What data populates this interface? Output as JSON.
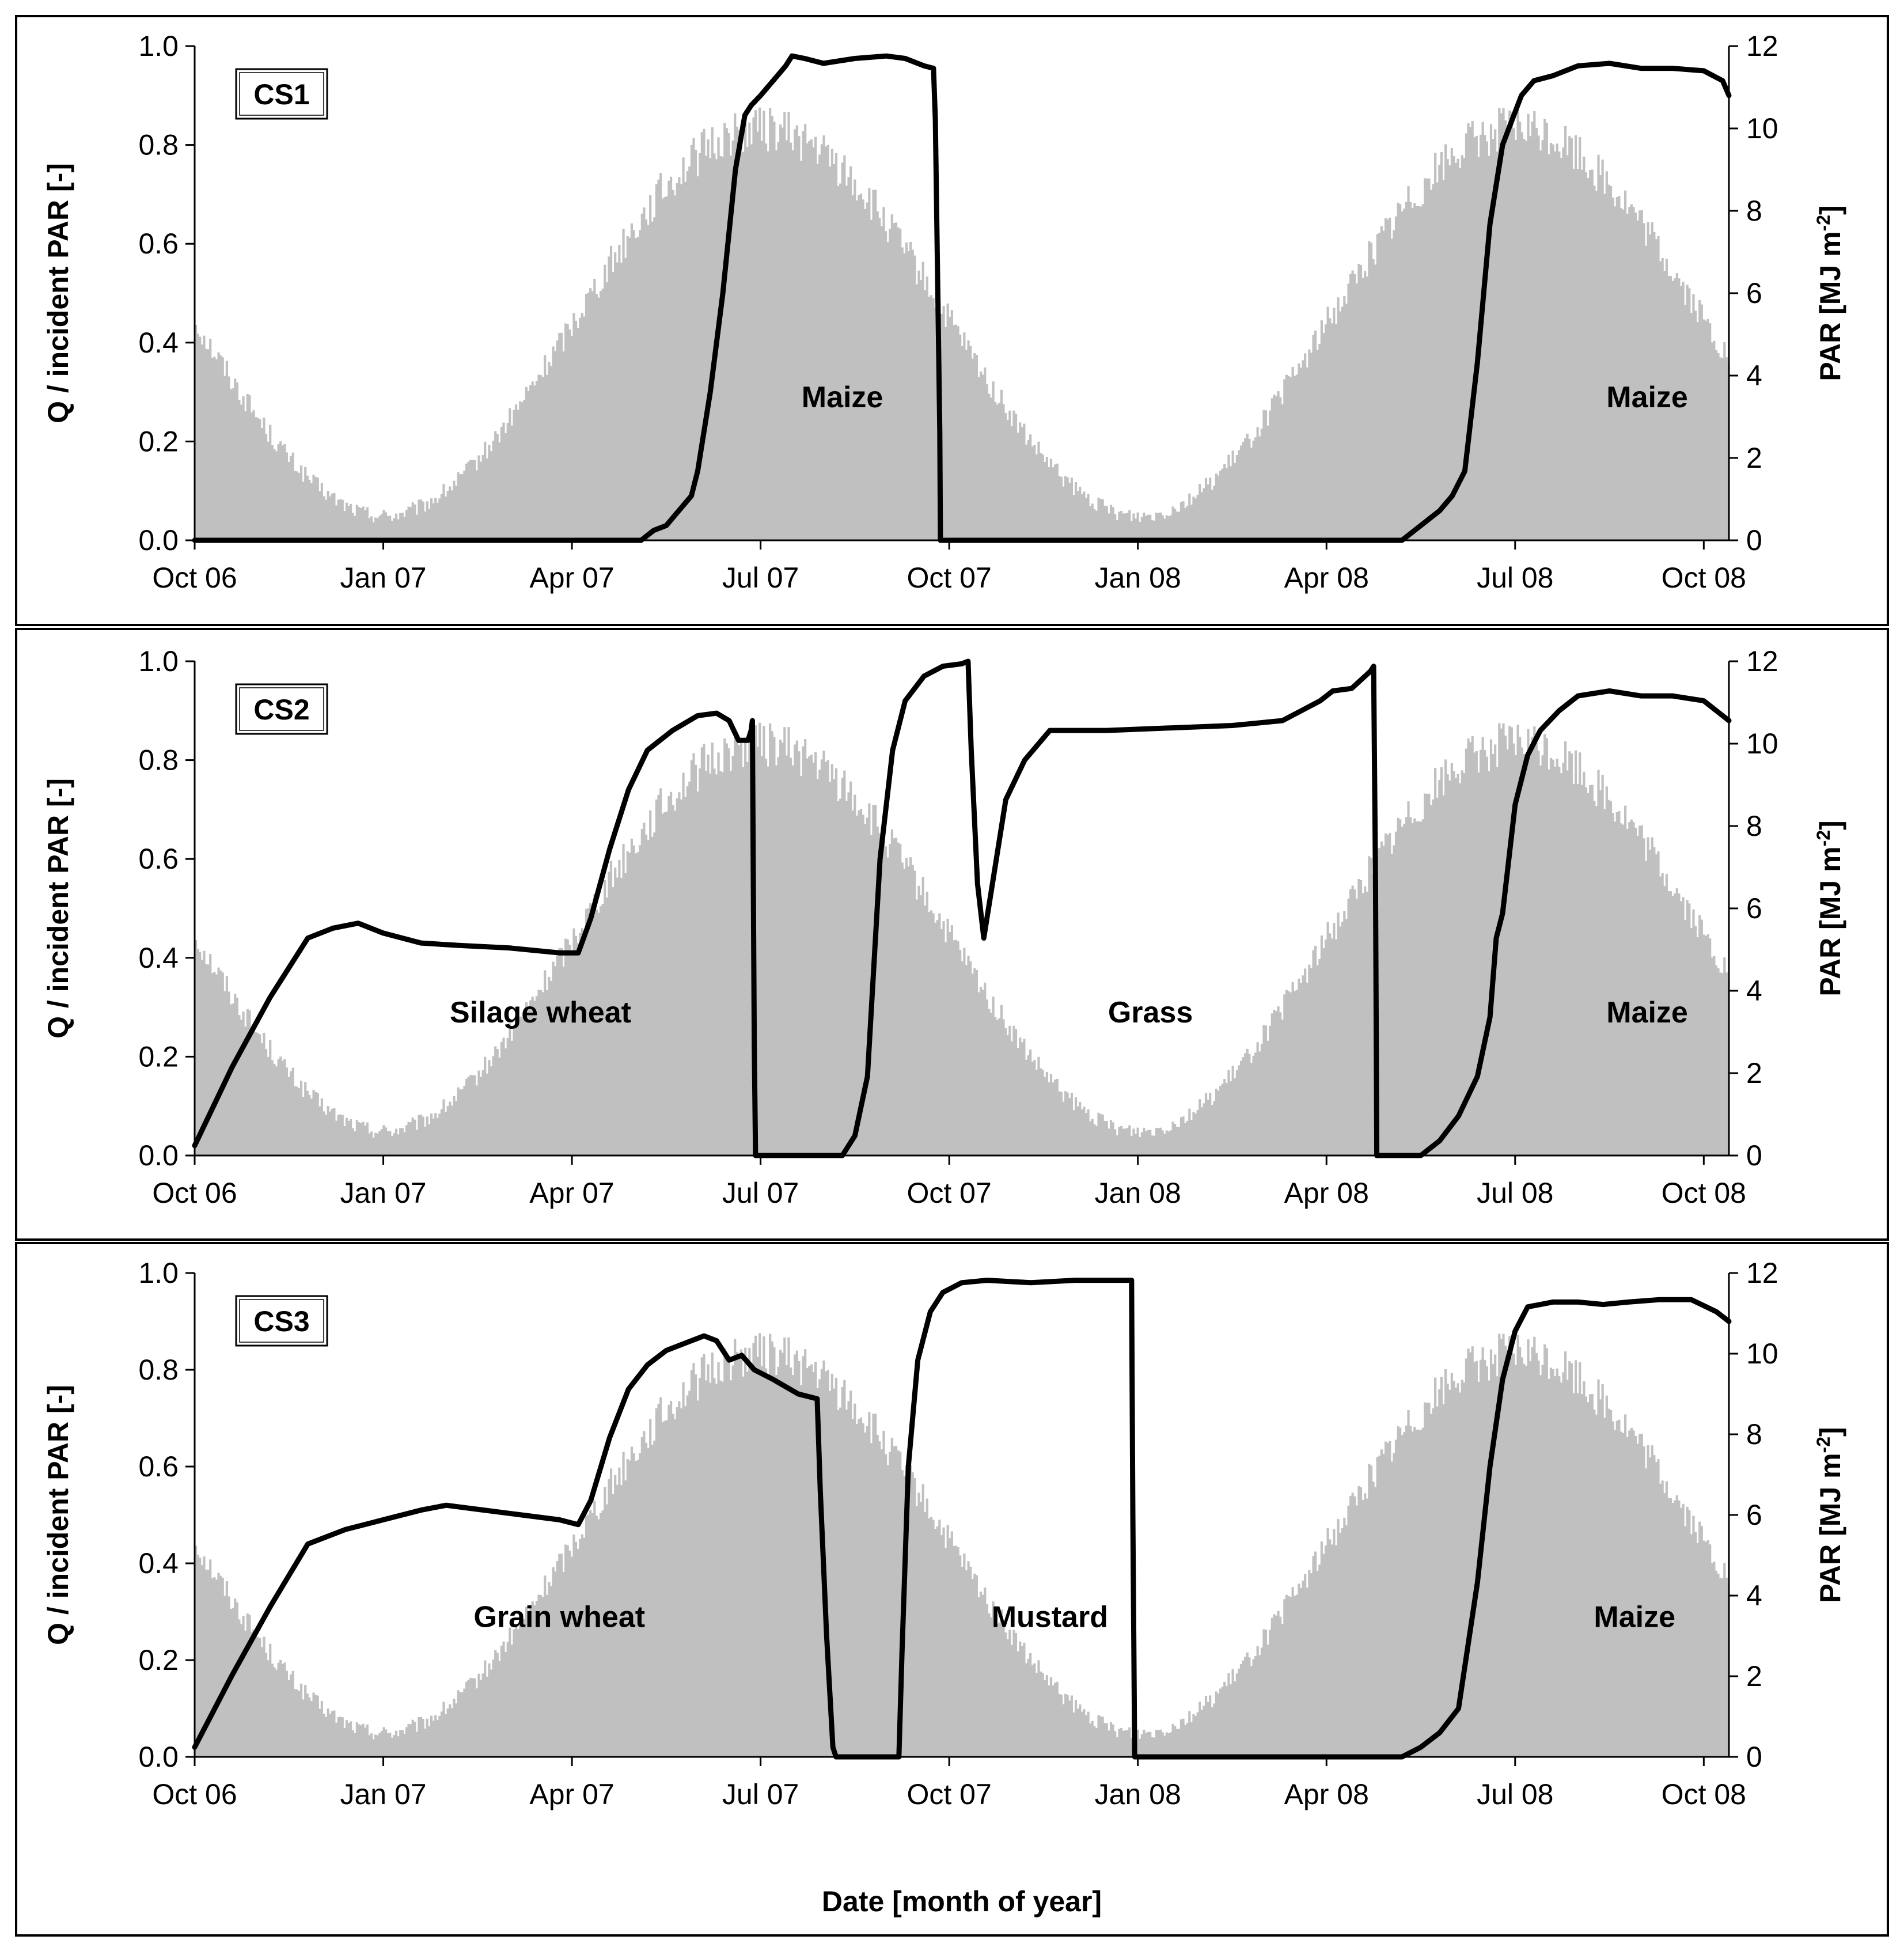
{
  "figure": {
    "xlabel": "Date [month of year]",
    "y_left_label": "Q / incident PAR [-]",
    "y_right_label": "PAR [MJ m-2]",
    "y_right_label_base": "PAR [MJ m",
    "y_right_label_sup": "-2",
    "y_right_label_end": "]",
    "bar_color": "#c0c0c0",
    "line_color": "#000000"
  },
  "chart_data": [
    {
      "type": "line",
      "panel_label": "CS1",
      "title": "CS1",
      "xlabel": "Date [month of year]",
      "ylabel": "Q / incident PAR [-]",
      "ylabel_right": "PAR [MJ m-2]",
      "x_start": "Oct 06",
      "xlim_months": [
        0,
        24.4
      ],
      "ylim": [
        0,
        1.0
      ],
      "ylim_right": [
        0,
        12
      ],
      "x_tick_labels": [
        "Oct 06",
        "Jan 07",
        "Apr 07",
        "Jul 07",
        "Oct 07",
        "Jan 08",
        "Apr 08",
        "Jul 08",
        "Oct 08"
      ],
      "x_tick_months": [
        0,
        3,
        6,
        9,
        12,
        15,
        18,
        21,
        24
      ],
      "y_ticks": [
        "0.0",
        "0.2",
        "0.4",
        "0.6",
        "0.8",
        "1.0"
      ],
      "y_ticks_right": [
        "0",
        "2",
        "4",
        "6",
        "8",
        "10",
        "12"
      ],
      "crop_labels": [
        {
          "text": "Maize",
          "month": 10.3,
          "y": 0.29
        },
        {
          "text": "Maize",
          "month": 23.1,
          "y": 0.29
        }
      ],
      "series": [
        {
          "name": "Q / incident PAR",
          "axis": "left",
          "x_months": [
            0,
            7.1,
            7.3,
            7.5,
            7.7,
            7.9,
            8.0,
            8.2,
            8.4,
            8.6,
            8.75,
            8.85,
            9.0,
            9.2,
            9.4,
            9.5,
            9.7,
            10.0,
            10.5,
            11.0,
            11.3,
            11.6,
            11.75,
            11.78,
            11.85,
            11.86,
            19.2,
            19.5,
            19.8,
            20.0,
            20.2,
            20.4,
            20.6,
            20.8,
            20.95,
            21.1,
            21.3,
            21.6,
            22.0,
            22.5,
            23.0,
            23.5,
            24.0,
            24.3,
            24.4
          ],
          "y": [
            0,
            0,
            0.02,
            0.03,
            0.06,
            0.09,
            0.14,
            0.3,
            0.5,
            0.75,
            0.86,
            0.88,
            0.9,
            0.93,
            0.96,
            0.98,
            0.975,
            0.965,
            0.975,
            0.98,
            0.975,
            0.96,
            0.955,
            0.85,
            0.22,
            0,
            0,
            0.03,
            0.06,
            0.09,
            0.14,
            0.36,
            0.64,
            0.8,
            0.85,
            0.9,
            0.93,
            0.94,
            0.96,
            0.965,
            0.955,
            0.955,
            0.95,
            0.93,
            0.9
          ]
        },
        {
          "name": "Incident PAR",
          "type": "bar",
          "axis": "right",
          "daily": true,
          "peak_month": 9.0,
          "min_value": 0.6,
          "max_value": 10.0,
          "noise": 1.1
        }
      ]
    },
    {
      "type": "line",
      "panel_label": "CS2",
      "title": "CS2",
      "xlabel": "Date [month of year]",
      "ylabel": "Q / incident PAR [-]",
      "ylabel_right": "PAR [MJ m-2]",
      "x_start": "Oct 06",
      "xlim_months": [
        0,
        24.4
      ],
      "ylim": [
        0,
        1.0
      ],
      "ylim_right": [
        0,
        12
      ],
      "x_tick_labels": [
        "Oct 06",
        "Jan 07",
        "Apr 07",
        "Jul 07",
        "Oct 07",
        "Jan 08",
        "Apr 08",
        "Jul 08",
        "Oct 08"
      ],
      "x_tick_months": [
        0,
        3,
        6,
        9,
        12,
        15,
        18,
        21,
        24
      ],
      "y_ticks": [
        "0.0",
        "0.2",
        "0.4",
        "0.6",
        "0.8",
        "1.0"
      ],
      "y_ticks_right": [
        "0",
        "2",
        "4",
        "6",
        "8",
        "10",
        "12"
      ],
      "crop_labels": [
        {
          "text": "Silage wheat",
          "month": 5.5,
          "y": 0.29
        },
        {
          "text": "Grass",
          "month": 15.2,
          "y": 0.29
        },
        {
          "text": "Maize",
          "month": 23.1,
          "y": 0.29
        }
      ],
      "series": [
        {
          "name": "Q / incident PAR",
          "axis": "left",
          "x_months": [
            0,
            0.6,
            1.2,
            1.8,
            2.2,
            2.6,
            3.0,
            3.6,
            4.2,
            5.0,
            5.8,
            6.1,
            6.3,
            6.6,
            6.9,
            7.2,
            7.6,
            8.0,
            8.3,
            8.5,
            8.65,
            8.8,
            8.85,
            8.87,
            8.9,
            8.92,
            10.3,
            10.5,
            10.7,
            10.9,
            11.1,
            11.3,
            11.6,
            11.9,
            12.2,
            12.3,
            12.35,
            12.45,
            12.55,
            12.7,
            12.9,
            13.2,
            13.6,
            14.5,
            15.5,
            16.5,
            17.3,
            17.6,
            17.9,
            18.1,
            18.4,
            18.7,
            18.75,
            18.78,
            18.8,
            19.5,
            19.8,
            20.1,
            20.4,
            20.6,
            20.7,
            20.8,
            20.9,
            21.0,
            21.2,
            21.4,
            21.7,
            22.0,
            22.5,
            23.0,
            23.5,
            24.0,
            24.4
          ],
          "y": [
            0.02,
            0.18,
            0.32,
            0.44,
            0.46,
            0.47,
            0.45,
            0.43,
            0.425,
            0.42,
            0.41,
            0.41,
            0.48,
            0.62,
            0.74,
            0.82,
            0.86,
            0.89,
            0.895,
            0.88,
            0.84,
            0.84,
            0.86,
            0.88,
            0.22,
            0,
            0,
            0.04,
            0.16,
            0.6,
            0.82,
            0.92,
            0.97,
            0.99,
            0.995,
            1.0,
            0.82,
            0.55,
            0.44,
            0.56,
            0.72,
            0.8,
            0.86,
            0.86,
            0.865,
            0.87,
            0.88,
            0.9,
            0.92,
            0.94,
            0.945,
            0.98,
            0.99,
            0.55,
            0,
            0,
            0.03,
            0.08,
            0.16,
            0.28,
            0.44,
            0.49,
            0.6,
            0.71,
            0.81,
            0.86,
            0.9,
            0.93,
            0.94,
            0.93,
            0.93,
            0.92,
            0.88
          ]
        },
        {
          "name": "Incident PAR",
          "type": "bar",
          "axis": "right",
          "daily": true,
          "peak_month": 9.0,
          "min_value": 0.6,
          "max_value": 10.0,
          "noise": 1.1
        }
      ]
    },
    {
      "type": "line",
      "panel_label": "CS3",
      "title": "CS3",
      "xlabel": "Date [month of year]",
      "ylabel": "Q / incident PAR [-]",
      "ylabel_right": "PAR [MJ m-2]",
      "x_start": "Oct 06",
      "xlim_months": [
        0,
        24.4
      ],
      "ylim": [
        0,
        1.0
      ],
      "ylim_right": [
        0,
        12
      ],
      "x_tick_labels": [
        "Oct 06",
        "Jan 07",
        "Apr 07",
        "Jul 07",
        "Oct 07",
        "Jan 08",
        "Apr 08",
        "Jul 08",
        "Oct 08"
      ],
      "x_tick_months": [
        0,
        3,
        6,
        9,
        12,
        15,
        18,
        21,
        24
      ],
      "y_ticks": [
        "0.0",
        "0.2",
        "0.4",
        "0.6",
        "0.8",
        "1.0"
      ],
      "y_ticks_right": [
        "0",
        "2",
        "4",
        "6",
        "8",
        "10",
        "12"
      ],
      "crop_labels": [
        {
          "text": "Grain wheat",
          "month": 5.8,
          "y": 0.29
        },
        {
          "text": "Mustard",
          "month": 13.6,
          "y": 0.29
        },
        {
          "text": "Maize",
          "month": 22.9,
          "y": 0.29
        }
      ],
      "series": [
        {
          "name": "Q / incident PAR",
          "axis": "left",
          "x_months": [
            0,
            0.6,
            1.2,
            1.8,
            2.4,
            3.0,
            3.6,
            4.0,
            4.6,
            5.2,
            5.8,
            6.1,
            6.3,
            6.6,
            6.9,
            7.2,
            7.5,
            7.9,
            8.1,
            8.3,
            8.5,
            8.7,
            8.9,
            9.2,
            9.6,
            9.9,
            9.95,
            10.05,
            10.15,
            10.2,
            11.2,
            11.25,
            11.35,
            11.5,
            11.7,
            11.9,
            12.2,
            12.6,
            13.3,
            14.0,
            14.9,
            14.92,
            14.95,
            19.2,
            19.5,
            19.8,
            20.1,
            20.4,
            20.6,
            20.8,
            21.0,
            21.2,
            21.6,
            22.0,
            22.4,
            22.8,
            23.3,
            23.8,
            24.2,
            24.4
          ],
          "y": [
            0.02,
            0.17,
            0.31,
            0.44,
            0.47,
            0.49,
            0.51,
            0.52,
            0.51,
            0.5,
            0.49,
            0.48,
            0.53,
            0.66,
            0.76,
            0.81,
            0.84,
            0.86,
            0.87,
            0.86,
            0.82,
            0.83,
            0.8,
            0.78,
            0.75,
            0.74,
            0.55,
            0.25,
            0.02,
            0,
            0,
            0.22,
            0.6,
            0.82,
            0.92,
            0.96,
            0.98,
            0.985,
            0.98,
            0.985,
            0.985,
            0.5,
            0,
            0,
            0.02,
            0.05,
            0.1,
            0.36,
            0.6,
            0.78,
            0.88,
            0.93,
            0.94,
            0.94,
            0.935,
            0.94,
            0.945,
            0.945,
            0.92,
            0.9
          ]
        },
        {
          "name": "Incident PAR",
          "type": "bar",
          "axis": "right",
          "daily": true,
          "peak_month": 9.0,
          "min_value": 0.6,
          "max_value": 10.0,
          "noise": 1.1
        }
      ]
    }
  ]
}
